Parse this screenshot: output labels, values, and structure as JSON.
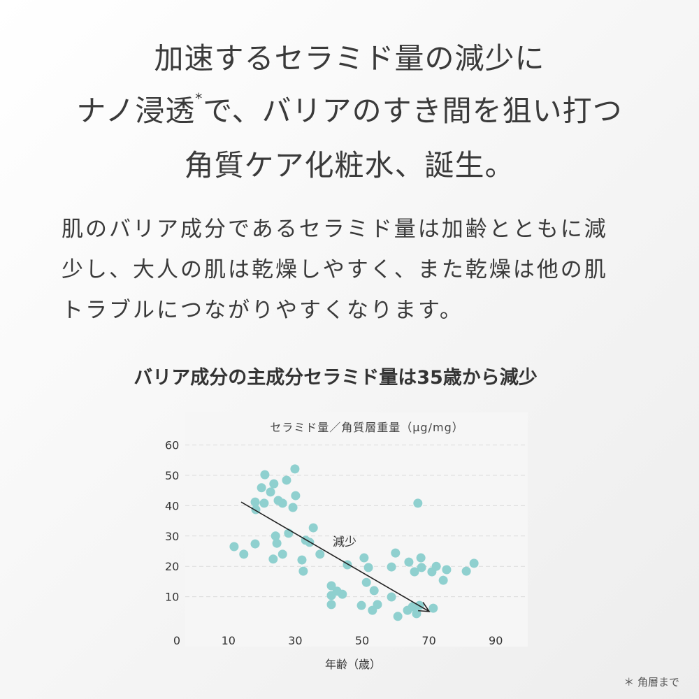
{
  "headline": {
    "line1": "加速するセラミド量の減少に",
    "line2_a": "ナノ浸透",
    "line2_mark": "*",
    "line2_b": "で、バリアのすき間を狙い打つ",
    "line3": "角質ケア化粧水、誕生。"
  },
  "body": {
    "line1": "肌のバリア成分であるセラミド量は加齢とともに減",
    "line2": "少し、大人の肌は乾燥しやすく、また乾燥は他の肌",
    "line3": "トラブルにつながりやすくなります。"
  },
  "subheading": "バリア成分の主成分セラミド量は35歳から減少",
  "footnote": "＊ 角層まで",
  "chart_data": {
    "type": "scatter",
    "title": "セラミド量／角質層重量（μg/mg）",
    "xlabel": "年齢（歳）",
    "ylabel": "",
    "xlim": [
      0,
      90
    ],
    "ylim": [
      0,
      60
    ],
    "x_ticks": [
      0,
      10,
      30,
      50,
      70,
      90
    ],
    "y_ticks": [
      10,
      20,
      30,
      40,
      50,
      60
    ],
    "grid": "horizontal dashed",
    "point_color": "#8fd0cf",
    "background": "#f6f6f6",
    "annotation": {
      "text": "減少",
      "arrow_from": [
        13.8,
        41.2
      ],
      "arrow_to": [
        70.1,
        5.1
      ]
    },
    "points": [
      [
        11.7,
        26.5
      ],
      [
        14.6,
        24.0
      ],
      [
        18.0,
        27.4
      ],
      [
        18.0,
        41.2
      ],
      [
        18.2,
        38.7
      ],
      [
        20.9,
        50.2
      ],
      [
        19.9,
        45.9
      ],
      [
        20.7,
        40.8
      ],
      [
        22.6,
        44.5
      ],
      [
        23.6,
        47.2
      ],
      [
        24.1,
        30.0
      ],
      [
        24.9,
        41.7
      ],
      [
        24.5,
        27.6
      ],
      [
        23.4,
        22.4
      ],
      [
        26.2,
        40.8
      ],
      [
        26.2,
        24.0
      ],
      [
        27.4,
        48.4
      ],
      [
        28.0,
        30.9
      ],
      [
        29.3,
        39.4
      ],
      [
        29.9,
        52.1
      ],
      [
        30.1,
        43.3
      ],
      [
        32.0,
        22.1
      ],
      [
        32.4,
        18.4
      ],
      [
        33.1,
        28.6
      ],
      [
        34.3,
        27.9
      ],
      [
        35.4,
        32.7
      ],
      [
        37.4,
        24.0
      ],
      [
        40.8,
        13.6
      ],
      [
        40.8,
        10.4
      ],
      [
        40.8,
        7.4
      ],
      [
        42.5,
        11.8
      ],
      [
        44.1,
        10.8
      ],
      [
        45.6,
        20.5
      ],
      [
        49.8,
        7.1
      ],
      [
        50.6,
        22.8
      ],
      [
        51.3,
        14.7
      ],
      [
        51.9,
        19.6
      ],
      [
        53.1,
        5.5
      ],
      [
        54.6,
        7.4
      ],
      [
        53.6,
        12.0
      ],
      [
        58.8,
        9.9
      ],
      [
        58.8,
        19.8
      ],
      [
        60.0,
        24.4
      ],
      [
        60.7,
        3.5
      ],
      [
        63.6,
        5.5
      ],
      [
        64.0,
        21.4
      ],
      [
        65.1,
        6.7
      ],
      [
        65.7,
        18.2
      ],
      [
        67.2,
        7.1
      ],
      [
        66.7,
        40.8
      ],
      [
        67.6,
        22.8
      ],
      [
        67.8,
        19.6
      ],
      [
        66.3,
        4.4
      ],
      [
        71.3,
        6.2
      ],
      [
        70.9,
        18.2
      ],
      [
        72.2,
        20.0
      ],
      [
        74.3,
        15.4
      ],
      [
        75.3,
        18.9
      ],
      [
        81.2,
        18.4
      ],
      [
        83.5,
        21.0
      ]
    ]
  }
}
